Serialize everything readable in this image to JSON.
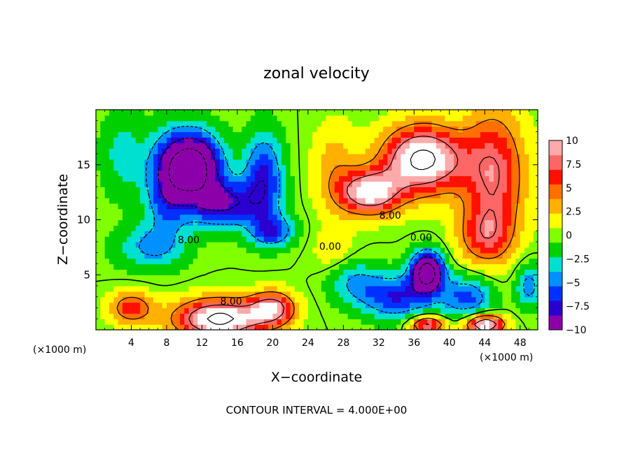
{
  "chart_data": {
    "type": "heatmap",
    "title": "zonal velocity",
    "xlabel": "X−coordinate",
    "ylabel": "Z−coordinate",
    "x_unit_left": "(×1000 m)",
    "x_unit_right": "(×1000 m)",
    "footer": "CONTOUR INTERVAL = 4.000E+00",
    "xlim": [
      0,
      50
    ],
    "ylim": [
      0,
      20
    ],
    "x_ticks": [
      4,
      8,
      12,
      16,
      20,
      24,
      28,
      32,
      36,
      40,
      44,
      48
    ],
    "x_tick_labels": [
      "4",
      "8",
      "12",
      "16",
      "20",
      "24",
      "28",
      "32",
      "36",
      "40",
      "44",
      "48"
    ],
    "y_ticks": [
      5,
      10,
      15
    ],
    "y_tick_labels": [
      "5",
      "10",
      "15"
    ],
    "colorbar": {
      "range": [
        -10,
        10
      ],
      "ticks": [
        10,
        7.5,
        5,
        2.5,
        0,
        -2.5,
        -5,
        -7.5,
        -10
      ],
      "tick_labels": [
        "10",
        "7.5",
        "5",
        "2.5",
        "0",
        "−2.5",
        "−5",
        "−7.5",
        "−10"
      ],
      "colors": [
        "#8b00a8",
        "#2a00d0",
        "#0030ff",
        "#0090ff",
        "#00e0d0",
        "#00d000",
        "#80ff00",
        "#ffff00",
        "#ffb000",
        "#ff7000",
        "#ff1000",
        "#ff6666",
        "#ffaaaa"
      ]
    },
    "contour_labels": [
      {
        "text": "8.00",
        "x": 10.5,
        "z": 8.2
      },
      {
        "text": "0.00",
        "x": 26.5,
        "z": 7.6
      },
      {
        "text": "8.00",
        "x": 33.3,
        "z": 10.4
      },
      {
        "text": "0.00",
        "x": 36.8,
        "z": 8.4
      },
      {
        "text": "8.00",
        "x": 15.3,
        "z": 2.6
      }
    ],
    "blobs": [
      {
        "x": 11,
        "z": 15,
        "v": -14,
        "sx": 3.2,
        "sz": 3.0
      },
      {
        "x": 14.5,
        "z": 11.5,
        "v": -8,
        "sx": 4.2,
        "sz": 2.2
      },
      {
        "x": 8,
        "z": 13,
        "v": -6,
        "sx": 2.5,
        "sz": 4.5
      },
      {
        "x": 19,
        "z": 14,
        "v": -7,
        "sx": 2.2,
        "sz": 4.0
      },
      {
        "x": 20,
        "z": 9,
        "v": -6,
        "sx": 2.5,
        "sz": 1.5
      },
      {
        "x": 6,
        "z": 7.5,
        "v": -4,
        "sx": 4.0,
        "sz": 2.0
      },
      {
        "x": 3,
        "z": 16,
        "v": -3,
        "sx": 2.5,
        "sz": 4.0
      },
      {
        "x": 37,
        "z": 15.5,
        "v": 13,
        "sx": 4.5,
        "sz": 3.0
      },
      {
        "x": 31,
        "z": 12.5,
        "v": 11,
        "sx": 3.5,
        "sz": 2.0
      },
      {
        "x": 45,
        "z": 14,
        "v": 8,
        "sx": 3.5,
        "sz": 6.0
      },
      {
        "x": 44,
        "z": 8.5,
        "v": 5,
        "sx": 3.0,
        "sz": 2.5
      },
      {
        "x": 27,
        "z": 15,
        "v": 3,
        "sx": 2.5,
        "sz": 4.0
      },
      {
        "x": 37.5,
        "z": 5.3,
        "v": -14,
        "sx": 1.8,
        "sz": 1.8
      },
      {
        "x": 34,
        "z": 3,
        "v": -7,
        "sx": 4.0,
        "sz": 2.0
      },
      {
        "x": 42,
        "z": 3,
        "v": -6,
        "sx": 3.0,
        "sz": 2.0
      },
      {
        "x": 29,
        "z": 4.5,
        "v": -4,
        "sx": 3.0,
        "sz": 2.0
      },
      {
        "x": 14,
        "z": 1,
        "v": 13,
        "sx": 5.0,
        "sz": 1.8
      },
      {
        "x": 20,
        "z": 2,
        "v": 9,
        "sx": 2.5,
        "sz": 1.5
      },
      {
        "x": 4,
        "z": 2,
        "v": 6,
        "sx": 2.5,
        "sz": 1.5
      },
      {
        "x": 44,
        "z": 0.5,
        "v": 12,
        "sx": 2.2,
        "sz": 0.9
      },
      {
        "x": 37.5,
        "z": 0.5,
        "v": 9,
        "sx": 2.0,
        "sz": 0.8
      },
      {
        "x": 49,
        "z": 4,
        "v": -5,
        "sx": 1.5,
        "sz": 2.0
      },
      {
        "x": 27,
        "z": 7,
        "v": 2,
        "sx": 2.5,
        "sz": 2.5
      }
    ]
  }
}
